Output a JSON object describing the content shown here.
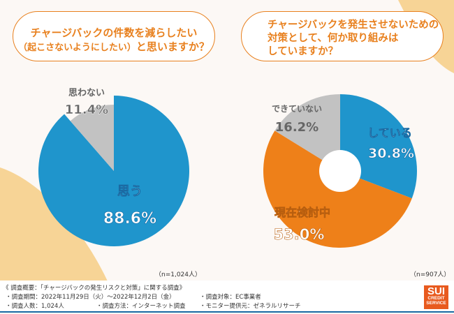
{
  "colors": {
    "blue": "#1f95cc",
    "orange": "#ee8019",
    "grey": "#c2c2c2",
    "peach": "#f7d496",
    "accent_text": "#e8801e"
  },
  "questions": {
    "q1_line1": "チャージバックの件数を減らしたい",
    "q1_line2_small": "（起こさないようにしたい）",
    "q1_line2_rest": "と思いますか？",
    "q2_line1": "チャージバックを発生させないための",
    "q2_line2": "対策として、何か取り組みは",
    "q2_line3": "していますか？"
  },
  "chart_data": [
    {
      "type": "pie",
      "title": "チャージバックの件数を減らしたい（起こさないようにしたい）と思いますか？",
      "categories": [
        "思う",
        "思わない"
      ],
      "values": [
        88.6,
        11.4
      ],
      "value_labels": [
        "88.6%",
        "11.4%"
      ],
      "colors": [
        "#1f95cc",
        "#c2c2c2"
      ],
      "donut": false,
      "sample": "（n=1,024人）"
    },
    {
      "type": "pie",
      "title": "チャージバックを発生させないための対策として、何か取り組みはしていますか？",
      "categories": [
        "している",
        "現在検討中",
        "できていない"
      ],
      "values": [
        30.8,
        53.0,
        16.2
      ],
      "value_labels": [
        "30.8%",
        "53.0%",
        "16.2%"
      ],
      "colors": [
        "#1f95cc",
        "#ee8019",
        "#c2c2c2"
      ],
      "donut": true,
      "sample": "（n=907人）"
    }
  ],
  "footer": {
    "title": "《 調査概要：「チャージバックの発生リスクと対策」に関する調査》",
    "period": "・調査期間：2022年11月29日（火）～2022年12月2日（金）",
    "target": "・調査対象：EC事業者",
    "count": "・調査人数：1,024人",
    "method": "・調査方法：インターネット調査",
    "provider": "・モニター提供元：ゼネラルリサーチ"
  },
  "logo": {
    "line1": "SUI",
    "line2": "CREDIT",
    "line3": "SERVICE"
  }
}
